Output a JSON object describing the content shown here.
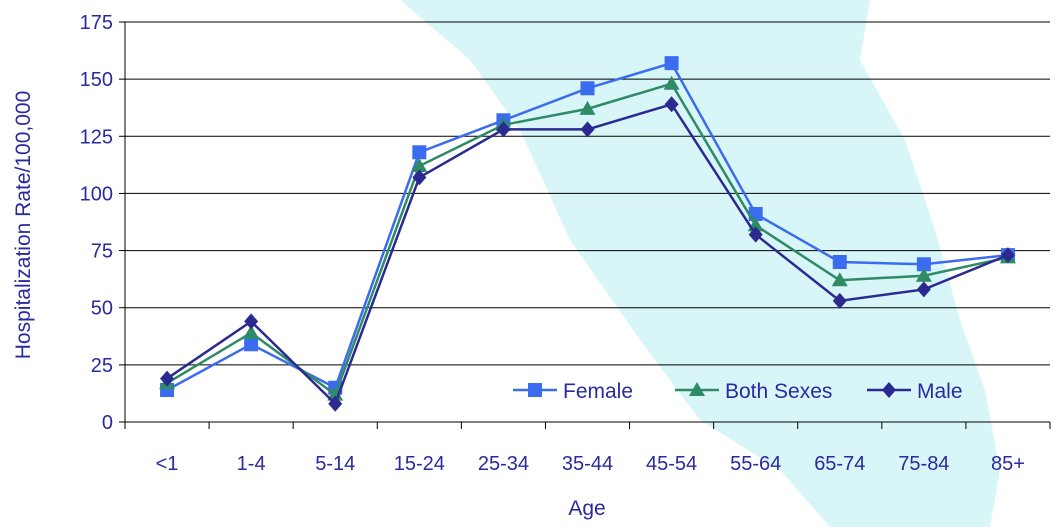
{
  "chart_data": {
    "type": "line",
    "title": "",
    "xlabel": "Age",
    "ylabel": "Hospitalization Rate/100,000",
    "categories": [
      "<1",
      "1-4",
      "5-14",
      "15-24",
      "25-34",
      "35-44",
      "45-54",
      "55-64",
      "65-74",
      "75-84",
      "85+"
    ],
    "ylim": [
      0,
      175
    ],
    "yticks": [
      "0",
      "25",
      "50",
      "75",
      "100",
      "125",
      "150",
      "175"
    ],
    "grid": true,
    "legend_position": "bottom-right",
    "series": [
      {
        "name": "Female",
        "marker": "square",
        "color": "#3b6cf0",
        "values": [
          14,
          34,
          15,
          118,
          132,
          146,
          157,
          91,
          70,
          69,
          73
        ]
      },
      {
        "name": "Both Sexes",
        "marker": "triangle",
        "color": "#2e8b65",
        "values": [
          17,
          39,
          12,
          112,
          130,
          137,
          148,
          86,
          62,
          64,
          72
        ]
      },
      {
        "name": "Male",
        "marker": "diamond",
        "color": "#2a2a90",
        "values": [
          19,
          44,
          8,
          107,
          128,
          128,
          139,
          82,
          53,
          58,
          73
        ]
      }
    ],
    "background_color": "#d8f6f8"
  }
}
